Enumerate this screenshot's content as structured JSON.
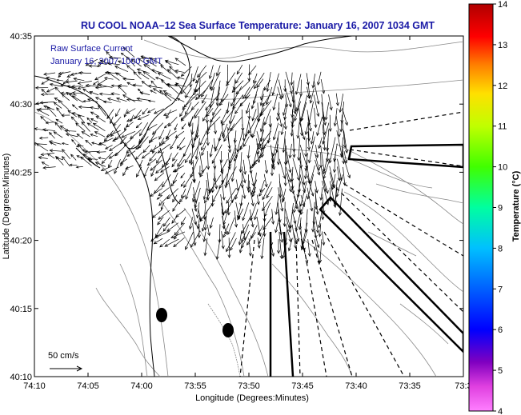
{
  "title": "RU COOL  NOAA–12  Sea Surface Temperature:  January 16, 2007 1034 GMT",
  "legend": {
    "line1": "Raw Surface Current",
    "line2": "January 16, 2007 1000 GMT"
  },
  "scale_arrow_label": "50 cm/s",
  "x_axis": {
    "label": "Longitude (Degrees:Minutes)",
    "ticks": [
      "74:10",
      "74:05",
      "74:00",
      "73:55",
      "73:50",
      "73:45",
      "73:40",
      "73:35",
      "73:3"
    ]
  },
  "y_axis": {
    "label": "Latitude (Degrees:Minutes)",
    "ticks": [
      "40:35",
      "40:30",
      "40:25",
      "40:20",
      "40:15",
      "40:10"
    ]
  },
  "colorbar": {
    "label": "Temperature (°C)",
    "ticks": [
      "14",
      "13",
      "12",
      "11",
      "10",
      "9",
      "8",
      "7",
      "6",
      "5",
      "4"
    ],
    "range": [
      4,
      14
    ]
  },
  "colors": {
    "title": "#1a1aa6",
    "legend_text": "#1a1aa6",
    "lines": "#000000",
    "contours": "#888888"
  }
}
